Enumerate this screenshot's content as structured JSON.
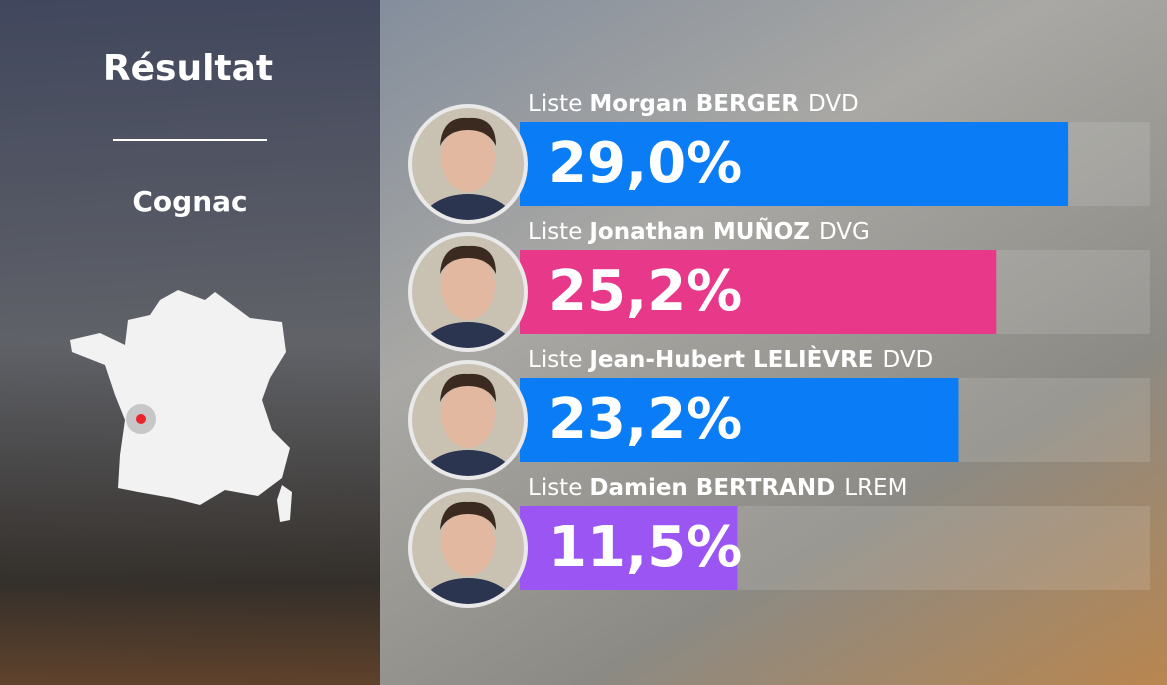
{
  "chart_data": {
    "type": "bar",
    "title": "Résultat",
    "subtitle": "Cognac",
    "list_labels": [
      "Liste",
      "Liste",
      "Liste",
      "Liste"
    ],
    "categories": [
      "Morgan BERGER",
      "Jonathan MUÑOZ",
      "Jean-Hubert LELIÈVRE",
      "Damien BERTRAND"
    ],
    "parties": [
      "DVD",
      "DVG",
      "DVD",
      "LREM"
    ],
    "values": [
      29.0,
      25.2,
      23.2,
      11.5
    ],
    "value_labels": [
      "29,0%",
      "25,2%",
      "23,2%",
      "11,5%"
    ],
    "colors": [
      "#0a7cf5",
      "#e8388a",
      "#0a7cf5",
      "#9b55f2"
    ]
  }
}
